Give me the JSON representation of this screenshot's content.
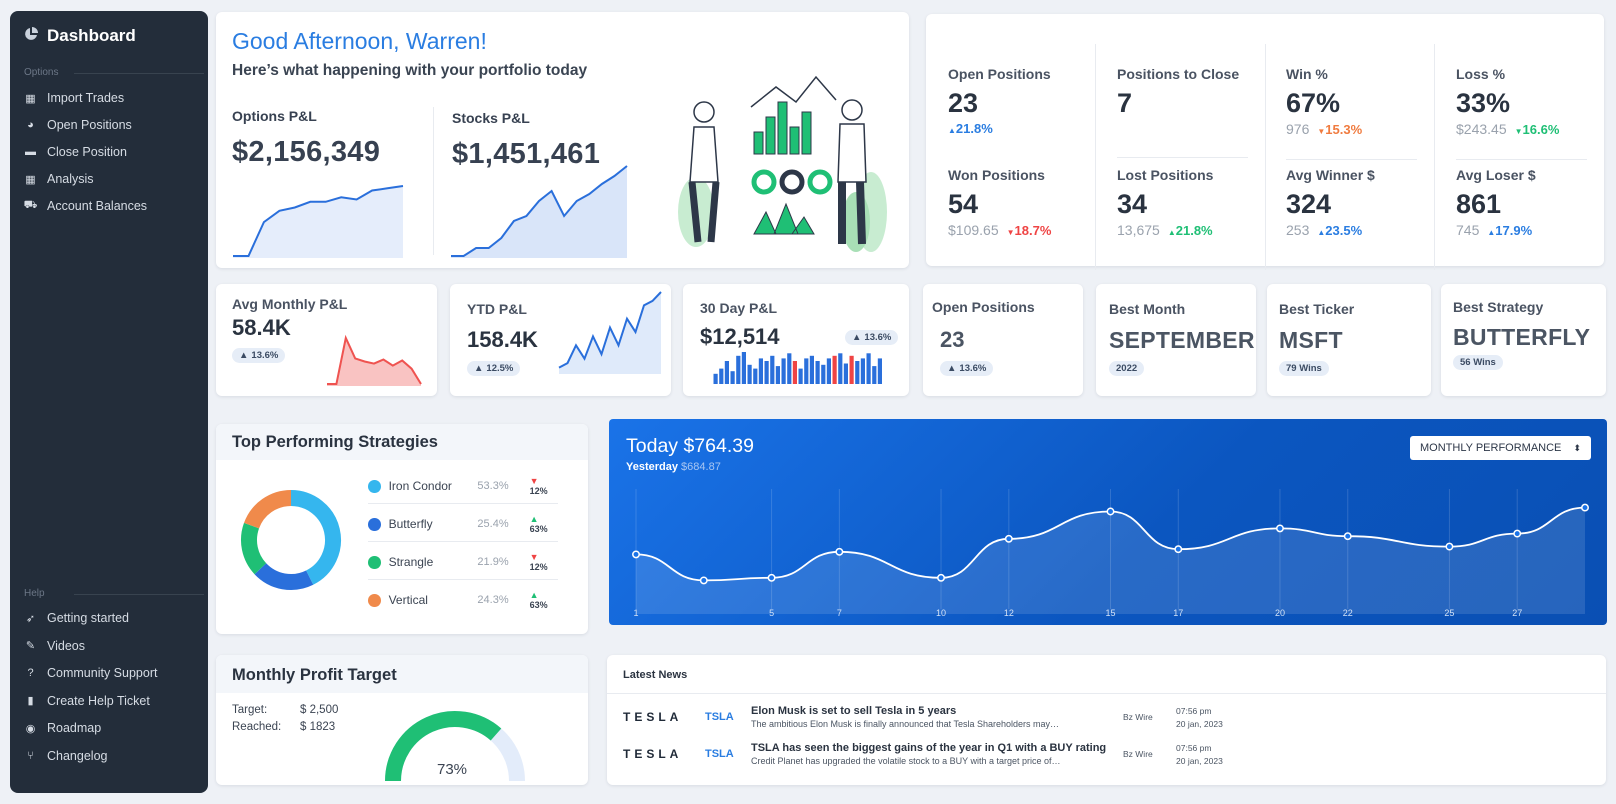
{
  "sidebar": {
    "title": "Dashboard",
    "options_label": "Options",
    "items": [
      {
        "label": "Import Trades",
        "icon": "calendar-icon"
      },
      {
        "label": "Open Positions",
        "icon": "chat-icon"
      },
      {
        "label": "Close Position",
        "icon": "folder-icon"
      },
      {
        "label": "Analysis",
        "icon": "calendar-icon"
      },
      {
        "label": "Account Balances",
        "icon": "cart-icon"
      }
    ],
    "help_label": "Help",
    "help_items": [
      {
        "label": "Getting started",
        "icon": "rocket-icon"
      },
      {
        "label": "Videos",
        "icon": "wrench-icon"
      },
      {
        "label": "Community Support",
        "icon": "question-icon"
      },
      {
        "label": "Create Help Ticket",
        "icon": "ticket-icon"
      },
      {
        "label": "Roadmap",
        "icon": "palette-icon"
      },
      {
        "label": "Changelog",
        "icon": "branch-icon"
      }
    ]
  },
  "greeting": {
    "title": "Good Afternoon, Warren!",
    "subtitle": "Here’s what happening with your portfolio today",
    "options_label": "Options P&L",
    "options_value": "$2,156,349",
    "stocks_label": "Stocks P&L",
    "stocks_value": "$1,451,461",
    "options_spark": [
      0,
      0,
      30,
      40,
      43,
      48,
      48,
      52,
      50,
      58,
      60,
      62
    ],
    "stocks_spark": [
      0,
      0,
      8,
      8,
      18,
      35,
      40,
      55,
      65,
      40,
      55,
      62,
      72,
      80,
      90
    ]
  },
  "stats": [
    {
      "label": "Open Positions",
      "value": "23",
      "sub": "",
      "delta": "21.8%",
      "dir": "up",
      "color": "blue"
    },
    {
      "label": "Positions to Close",
      "value": "7",
      "sub": "",
      "delta": "",
      "dir": "",
      "color": ""
    },
    {
      "label": "Win %",
      "value": "67%",
      "sub": "976",
      "delta": "15.3%",
      "dir": "down",
      "color": "orange"
    },
    {
      "label": "Loss %",
      "value": "33%",
      "sub": "$243.45",
      "delta": "16.6%",
      "dir": "down",
      "color": "green"
    },
    {
      "label": "Won Positions",
      "value": "54",
      "sub": "$109.65",
      "delta": "18.7%",
      "dir": "down",
      "color": "red"
    },
    {
      "label": "Lost Positions",
      "value": "34",
      "sub": "13,675",
      "delta": "21.8%",
      "dir": "up",
      "color": "green"
    },
    {
      "label": "Avg Winner $",
      "value": "324",
      "sub": "253",
      "delta": "23.5%",
      "dir": "up",
      "color": "blue"
    },
    {
      "label": "Avg Loser $",
      "value": "861",
      "sub": "745",
      "delta": "17.9%",
      "dir": "up",
      "color": "blue"
    }
  ],
  "kpis": {
    "avg_monthly": {
      "label": "Avg Monthly P&L",
      "value": "58.4K",
      "chip": "13.6%",
      "spark": [
        0,
        0,
        45,
        25,
        22,
        20,
        24,
        18,
        23,
        15,
        0
      ]
    },
    "ytd": {
      "label": "YTD P&L",
      "value": "158.4K",
      "chip": "12.5%",
      "spark": [
        5,
        10,
        30,
        15,
        40,
        20,
        50,
        30,
        60,
        45,
        75,
        80,
        90
      ]
    },
    "thirty_day": {
      "label": "30 Day P&L",
      "value": "$12,514",
      "chip": "13.6%",
      "bars": [
        8,
        12,
        18,
        10,
        22,
        25,
        15,
        12,
        20,
        18,
        22,
        14,
        20,
        24,
        18,
        12,
        20,
        22,
        18,
        15,
        20,
        22,
        24,
        16,
        22,
        18,
        20,
        24,
        14,
        20
      ],
      "bar_colors_red": [
        14,
        21,
        24
      ]
    },
    "open_positions": {
      "label": "Open Positions",
      "value": "23",
      "chip": "13.6%"
    },
    "best_month": {
      "label": "Best Month",
      "value": "SEPTEMBER",
      "chip": "2022"
    },
    "best_ticker": {
      "label": "Best Ticker",
      "value": "MSFT",
      "chip": "79 Wins"
    },
    "best_strategy": {
      "label": "Best Strategy",
      "value": "BUTTERFLY",
      "chip": "56 Wins"
    }
  },
  "strategies": {
    "title": "Top Performing Strategies",
    "items": [
      {
        "name": "Iron Condor",
        "pct": "53.3%",
        "delta": "12%",
        "dir": "down",
        "color": "#35b6ee"
      },
      {
        "name": "Butterfly",
        "pct": "25.4%",
        "delta": "63%",
        "dir": "up",
        "color": "#2a6fdb"
      },
      {
        "name": "Strangle",
        "pct": "21.9%",
        "delta": "12%",
        "dir": "down",
        "color": "#1fbf75"
      },
      {
        "name": "Vertical",
        "pct": "24.3%",
        "delta": "63%",
        "dir": "up",
        "color": "#f08a4b"
      }
    ]
  },
  "performance": {
    "today_label": "Today $764.39",
    "yesterday_label": "Yesterday",
    "yesterday_value": "$684.87",
    "dropdown": "MONTHLY PERFORMANCE",
    "chart_data": {
      "type": "line",
      "x": [
        1,
        3,
        5,
        7,
        10,
        12,
        15,
        17,
        20,
        22,
        25,
        27,
        29
      ],
      "values": [
        42,
        22,
        24,
        44,
        24,
        54,
        75,
        46,
        62,
        56,
        48,
        58,
        78
      ],
      "x_ticks": [
        1,
        5,
        7,
        10,
        12,
        15,
        17,
        20,
        22,
        25,
        27
      ],
      "ylim": [
        0,
        100
      ]
    }
  },
  "target": {
    "title": "Monthly Profit Target",
    "target_label": "Target:",
    "target_value": "$ 2,500",
    "reached_label": "Reached:",
    "reached_value": "$ 1823",
    "percent": "73%",
    "fraction": 0.73
  },
  "news": {
    "title": "Latest News",
    "items": [
      {
        "brand": "TESLA",
        "ticker": "TSLA",
        "headline": "Elon Musk is set to sell Tesla in 5 years",
        "summary": "The ambitious Elon Musk is finally announced that Tesla Shareholders may…",
        "source": "Bz Wire",
        "time": "07:56 pm",
        "date": "20 jan, 2023"
      },
      {
        "brand": "TESLA",
        "ticker": "TSLA",
        "headline": "TSLA has seen the biggest gains of the year in Q1 with a BUY rating",
        "summary": "Credit Planet has upgraded the volatile stock to a BUY with a target price of…",
        "source": "Bz Wire",
        "time": "07:56 pm",
        "date": "20 jan, 2023"
      }
    ]
  },
  "colors": {
    "accent": "#2a7de1",
    "sidebar": "#232d3a",
    "perf_bg": "#0f5fc8",
    "green": "#1fbf75",
    "red": "#ef4444",
    "orange": "#f07b3f"
  }
}
